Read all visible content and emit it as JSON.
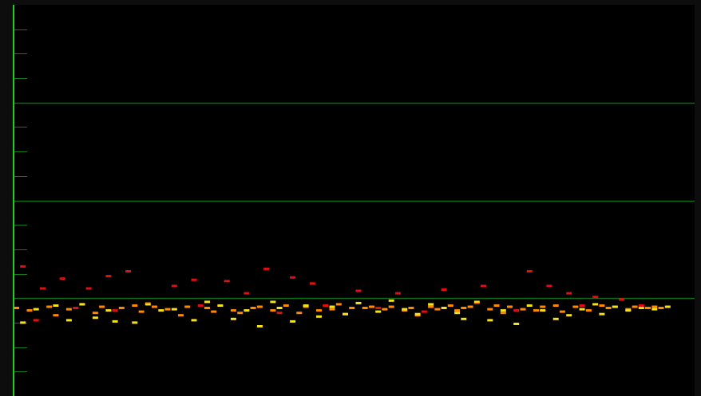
{
  "colors": {
    "frame_bg": "#0d0d0d",
    "plot_bg": "#000000",
    "axis": "#1ed01e",
    "gridline": "#0e6a0e",
    "tick": "#0f7a0f",
    "dot_red": "#e01010",
    "dot_orange": "#ff8a00",
    "dot_yellow": "#f6e21a"
  },
  "icons": {
    "scatter_marks": "horizontal-dash"
  },
  "chart_data": {
    "type": "scatter",
    "title": "",
    "xlabel": "",
    "ylabel": "",
    "grid": true,
    "ylim": [
      -4,
      12
    ],
    "y_major": [
      0,
      4,
      8
    ],
    "xlim": [
      0,
      100
    ],
    "series": [
      {
        "color": "red",
        "points": [
          [
            1,
            1.3
          ],
          [
            4,
            0.4
          ],
          [
            7,
            0.8
          ],
          [
            11,
            0.4
          ],
          [
            14,
            0.9
          ],
          [
            17,
            1.1
          ],
          [
            24,
            0.5
          ],
          [
            27,
            0.75
          ],
          [
            32,
            0.7
          ],
          [
            35,
            0.2
          ],
          [
            38,
            1.2
          ],
          [
            42,
            0.85
          ],
          [
            45,
            0.6
          ],
          [
            52,
            0.3
          ],
          [
            58,
            0.2
          ],
          [
            65,
            0.35
          ],
          [
            71,
            0.5
          ],
          [
            78,
            1.1
          ],
          [
            81,
            0.5
          ],
          [
            84,
            0.2
          ],
          [
            88,
            0.05
          ],
          [
            92,
            -0.05
          ],
          [
            3,
            -0.9
          ],
          [
            9,
            -0.4
          ],
          [
            15,
            -0.5
          ],
          [
            20,
            -0.2
          ],
          [
            28,
            -0.3
          ],
          [
            40,
            -0.6
          ],
          [
            47,
            -0.3
          ],
          [
            55,
            -0.4
          ],
          [
            62,
            -0.55
          ],
          [
            70,
            -0.2
          ],
          [
            76,
            -0.5
          ],
          [
            86,
            -0.3
          ],
          [
            95,
            -0.3
          ]
        ]
      },
      {
        "color": "orange",
        "points": [
          [
            0,
            -0.4
          ],
          [
            2,
            -0.5
          ],
          [
            5,
            -0.35
          ],
          [
            6,
            -0.7
          ],
          [
            8,
            -0.45
          ],
          [
            10,
            -0.25
          ],
          [
            12,
            -0.6
          ],
          [
            13,
            -0.35
          ],
          [
            16,
            -0.4
          ],
          [
            18,
            -0.3
          ],
          [
            19,
            -0.55
          ],
          [
            21,
            -0.35
          ],
          [
            23,
            -0.45
          ],
          [
            25,
            -0.7
          ],
          [
            26,
            -0.35
          ],
          [
            29,
            -0.4
          ],
          [
            30,
            -0.55
          ],
          [
            31,
            -0.3
          ],
          [
            33,
            -0.5
          ],
          [
            34,
            -0.6
          ],
          [
            36,
            -0.4
          ],
          [
            37,
            -0.35
          ],
          [
            39,
            -0.5
          ],
          [
            41,
            -0.3
          ],
          [
            43,
            -0.6
          ],
          [
            44,
            -0.35
          ],
          [
            46,
            -0.5
          ],
          [
            48,
            -0.45
          ],
          [
            49,
            -0.25
          ],
          [
            50,
            -0.65
          ],
          [
            51,
            -0.4
          ],
          [
            53,
            -0.4
          ],
          [
            54,
            -0.35
          ],
          [
            56,
            -0.45
          ],
          [
            57,
            -0.35
          ],
          [
            59,
            -0.5
          ],
          [
            60,
            -0.4
          ],
          [
            61,
            -0.7
          ],
          [
            63,
            -0.35
          ],
          [
            64,
            -0.45
          ],
          [
            66,
            -0.3
          ],
          [
            67,
            -0.5
          ],
          [
            68,
            -0.4
          ],
          [
            69,
            -0.35
          ],
          [
            72,
            -0.45
          ],
          [
            73,
            -0.3
          ],
          [
            74,
            -0.6
          ],
          [
            75,
            -0.35
          ],
          [
            77,
            -0.45
          ],
          [
            79,
            -0.5
          ],
          [
            80,
            -0.35
          ],
          [
            82,
            -0.3
          ],
          [
            83,
            -0.55
          ],
          [
            85,
            -0.35
          ],
          [
            87,
            -0.5
          ],
          [
            89,
            -0.3
          ],
          [
            90,
            -0.4
          ],
          [
            91,
            -0.35
          ],
          [
            93,
            -0.45
          ],
          [
            94,
            -0.35
          ],
          [
            96,
            -0.4
          ],
          [
            97,
            -0.35
          ],
          [
            98,
            -0.4
          ]
        ]
      },
      {
        "color": "yellow",
        "points": [
          [
            1,
            -1.0
          ],
          [
            3,
            -0.45
          ],
          [
            6,
            -0.3
          ],
          [
            8,
            -0.9
          ],
          [
            10,
            -0.25
          ],
          [
            12,
            -0.8
          ],
          [
            14,
            -0.5
          ],
          [
            15,
            -0.95
          ],
          [
            18,
            -1.0
          ],
          [
            20,
            -0.25
          ],
          [
            22,
            -0.5
          ],
          [
            24,
            -0.45
          ],
          [
            27,
            -0.9
          ],
          [
            29,
            -0.15
          ],
          [
            31,
            -0.3
          ],
          [
            33,
            -0.85
          ],
          [
            35,
            -0.5
          ],
          [
            37,
            -1.15
          ],
          [
            39,
            -0.15
          ],
          [
            40,
            -0.4
          ],
          [
            42,
            -0.95
          ],
          [
            44,
            -0.3
          ],
          [
            46,
            -0.75
          ],
          [
            48,
            -0.35
          ],
          [
            50,
            -0.65
          ],
          [
            52,
            -0.2
          ],
          [
            55,
            -0.55
          ],
          [
            57,
            -0.1
          ],
          [
            59,
            -0.45
          ],
          [
            61,
            -0.65
          ],
          [
            63,
            -0.25
          ],
          [
            65,
            -0.4
          ],
          [
            67,
            -0.6
          ],
          [
            68,
            -0.85
          ],
          [
            70,
            -0.15
          ],
          [
            72,
            -0.9
          ],
          [
            74,
            -0.5
          ],
          [
            76,
            -1.05
          ],
          [
            78,
            -0.3
          ],
          [
            80,
            -0.5
          ],
          [
            82,
            -0.85
          ],
          [
            84,
            -0.7
          ],
          [
            86,
            -0.45
          ],
          [
            88,
            -0.25
          ],
          [
            89,
            -0.65
          ],
          [
            91,
            -0.35
          ],
          [
            93,
            -0.5
          ],
          [
            95,
            -0.4
          ],
          [
            97,
            -0.45
          ],
          [
            99,
            -0.35
          ]
        ]
      }
    ]
  }
}
